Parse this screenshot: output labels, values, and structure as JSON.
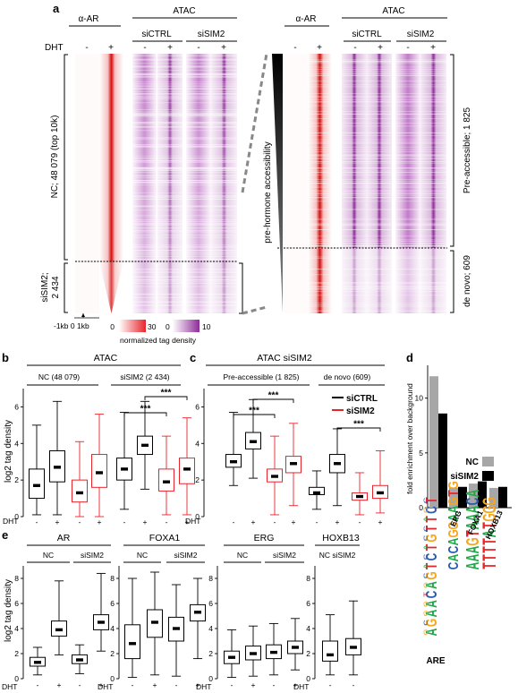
{
  "panel_a": {
    "letter": "a",
    "antibody": "α-AR",
    "atac": "ATAC",
    "dht": "DHT",
    "minus": "-",
    "plus": "+",
    "siCTRL": "siCTRL",
    "siSIM2": "siSIM2",
    "nc_label": "NC; 48 079 (top 10k)",
    "sisim2_label_1": "siSIM2;",
    "sisim2_label_2": "2 434",
    "x_axis": "-1kb 0 1kb",
    "scale_red": [
      "0",
      "30"
    ],
    "scale_purple": [
      "0",
      "10"
    ],
    "scale_title": "normalized tag density",
    "pre_hormone": "pre-hormone accessibility",
    "pre_accessible": "Pre-accessible; 1 825",
    "de_novo": "de novo; 609"
  },
  "panel_b": {
    "letter": "b",
    "title": "ATAC",
    "group1": "NC (48 079)",
    "group2": "siSIM2 (2 434)",
    "ylabel": "log2 tag density",
    "yticks": [
      "0",
      "2",
      "4",
      "6"
    ],
    "dht": "DHT",
    "xticks": [
      "-",
      "+",
      "-",
      "+",
      "-",
      "+",
      "-",
      "+"
    ],
    "sig": [
      "***",
      "***"
    ]
  },
  "panel_c": {
    "letter": "c",
    "title": "ATAC siSIM2",
    "group1": "Pre-accessible (1 825)",
    "group2": "de novo (609)",
    "yticks": [
      "0",
      "2",
      "4",
      "6"
    ],
    "dht": "DHT",
    "xticks": [
      "-",
      "+",
      "-",
      "+",
      "-",
      "+",
      "-",
      "+"
    ],
    "sig": [
      "***",
      "***",
      "***"
    ],
    "legend": [
      {
        "name": "siCTRL",
        "color": "#000000"
      },
      {
        "name": "siSIM2",
        "color": "#e8242b"
      }
    ]
  },
  "panel_d": {
    "letter": "d",
    "ylabel": "fold enrichment over background",
    "yticks": [
      "0",
      "5",
      "10"
    ],
    "legend": [
      {
        "name": "NC",
        "color": "#a7a7a7"
      },
      {
        "name": "siSIM2",
        "color": "#000000"
      }
    ],
    "motifs": [
      "ARE",
      "ERG",
      "FOXA1",
      "HOXB13"
    ]
  },
  "panel_e": {
    "letter": "e",
    "ylabel": "log2 tag density",
    "yticks": [
      "0",
      "2",
      "4",
      "6",
      "8"
    ],
    "dht": "DHT",
    "panels": [
      {
        "title": "AR",
        "g1": "NC",
        "g2": "siSIM2",
        "xticks": [
          "-",
          "+",
          "-",
          "+"
        ]
      },
      {
        "title": "FOXA1",
        "g1": "NC",
        "g2": "siSIM2",
        "xticks": [
          "-",
          "+",
          "-",
          "+"
        ]
      },
      {
        "title": "ERG",
        "g1": "NC",
        "g2": "siSIM2",
        "xticks": [
          "-",
          "+",
          "-",
          "+"
        ]
      },
      {
        "title": "HOXB13",
        "g1": "NC siSIM2",
        "g2": "",
        "xticks": [
          "-",
          "-"
        ]
      }
    ]
  },
  "chart_data": [
    {
      "type": "box",
      "panel": "b",
      "title": "ATAC",
      "ylabel": "log2 tag density",
      "ylim": [
        0,
        7
      ],
      "categories": [
        "NC -",
        "NC +",
        "NC -",
        "NC +",
        "siSIM2 -",
        "siSIM2 +",
        "siSIM2 -",
        "siSIM2 +"
      ],
      "series": [
        {
          "name": "siCTRL",
          "color": "#000000",
          "boxes": [
            {
              "pos": 0,
              "min": 0.1,
              "q1": 1.0,
              "med": 1.7,
              "q3": 2.6,
              "max": 5.0
            },
            {
              "pos": 1,
              "min": 0.1,
              "q1": 1.9,
              "med": 2.7,
              "q3": 3.6,
              "max": 6.3
            },
            {
              "pos": 4,
              "min": 0.4,
              "q1": 2.0,
              "med": 2.6,
              "q3": 3.2,
              "max": 5.7
            },
            {
              "pos": 5,
              "min": 1.5,
              "q1": 3.4,
              "med": 3.9,
              "q3": 4.4,
              "max": 6.3
            }
          ]
        },
        {
          "name": "siSIM2",
          "color": "#e8242b",
          "boxes": [
            {
              "pos": 2,
              "min": 0.0,
              "q1": 0.8,
              "med": 1.3,
              "q3": 2.0,
              "max": 4.1
            },
            {
              "pos": 3,
              "min": 0.0,
              "q1": 1.6,
              "med": 2.4,
              "q3": 3.4,
              "max": 5.6
            },
            {
              "pos": 6,
              "min": 0.1,
              "q1": 1.4,
              "med": 1.9,
              "q3": 2.6,
              "max": 4.4
            },
            {
              "pos": 7,
              "min": 0.1,
              "q1": 1.8,
              "med": 2.6,
              "q3": 3.2,
              "max": 5.4
            }
          ]
        }
      ]
    },
    {
      "type": "box",
      "panel": "c",
      "title": "ATAC siSIM2",
      "ylim": [
        0,
        7
      ],
      "series": [
        {
          "name": "siCTRL",
          "color": "#000000",
          "boxes": [
            {
              "pos": 0,
              "min": 1.7,
              "q1": 2.7,
              "med": 3.0,
              "q3": 3.4,
              "max": 5.7
            },
            {
              "pos": 1,
              "min": 2.1,
              "q1": 3.7,
              "med": 4.1,
              "q3": 4.6,
              "max": 6.4
            },
            {
              "pos": 4,
              "min": 0.4,
              "q1": 1.2,
              "med": 1.3,
              "q3": 1.6,
              "max": 2.5
            },
            {
              "pos": 5,
              "min": 0.6,
              "q1": 2.4,
              "med": 2.9,
              "q3": 3.4,
              "max": 4.8
            }
          ]
        },
        {
          "name": "siSIM2",
          "color": "#e8242b",
          "boxes": [
            {
              "pos": 2,
              "min": 0.1,
              "q1": 1.9,
              "med": 2.2,
              "q3": 2.6,
              "max": 4.4
            },
            {
              "pos": 3,
              "min": 0.6,
              "q1": 2.4,
              "med": 2.9,
              "q3": 3.3,
              "max": 5.1
            },
            {
              "pos": 6,
              "min": 0.1,
              "q1": 0.9,
              "med": 1.1,
              "q3": 1.3,
              "max": 2.4
            },
            {
              "pos": 7,
              "min": 0.2,
              "q1": 1.0,
              "med": 1.3,
              "q3": 1.7,
              "max": 3.6
            }
          ]
        }
      ]
    },
    {
      "type": "bar",
      "panel": "d",
      "ylabel": "fold enrichment over background",
      "ylim": [
        0,
        13
      ],
      "categories": [
        "ARE",
        "ERG",
        "FOXA1",
        "HOXB13"
      ],
      "series": [
        {
          "name": "NC",
          "color": "#a7a7a7",
          "values": [
            12.0,
            1.8,
            2.2,
            1.8
          ]
        },
        {
          "name": "siSIM2",
          "color": "#000000",
          "values": [
            8.6,
            1.9,
            2.4,
            1.9
          ]
        }
      ]
    },
    {
      "type": "box",
      "panel": "e",
      "ylabel": "log2 tag density",
      "ylim": [
        0,
        9
      ],
      "subplots": [
        {
          "title": "AR",
          "boxes": [
            {
              "min": 0.3,
              "q1": 1.0,
              "med": 1.3,
              "q3": 1.7,
              "max": 2.5
            },
            {
              "min": 1.9,
              "q1": 3.4,
              "med": 3.9,
              "q3": 4.6,
              "max": 7.8
            },
            {
              "min": 0.4,
              "q1": 1.2,
              "med": 1.5,
              "q3": 1.9,
              "max": 2.7
            },
            {
              "min": 2.2,
              "q1": 3.9,
              "med": 4.5,
              "q3": 5.1,
              "max": 8.4
            }
          ]
        },
        {
          "title": "FOXA1",
          "boxes": [
            {
              "min": 0.1,
              "q1": 1.6,
              "med": 2.8,
              "q3": 4.3,
              "max": 8.0
            },
            {
              "min": 0.3,
              "q1": 3.3,
              "med": 4.5,
              "q3": 5.5,
              "max": 8.5
            },
            {
              "min": 0.2,
              "q1": 3.0,
              "med": 4.0,
              "q3": 4.9,
              "max": 7.5
            },
            {
              "min": 1.6,
              "q1": 4.6,
              "med": 5.3,
              "q3": 5.9,
              "max": 8.0
            }
          ]
        },
        {
          "title": "ERG",
          "boxes": [
            {
              "min": 0.1,
              "q1": 1.2,
              "med": 1.7,
              "q3": 2.2,
              "max": 3.9
            },
            {
              "min": 0.2,
              "q1": 1.5,
              "med": 2.0,
              "q3": 2.6,
              "max": 4.2
            },
            {
              "min": 0.3,
              "q1": 1.6,
              "med": 2.1,
              "q3": 2.7,
              "max": 4.4
            },
            {
              "min": 0.7,
              "q1": 2.0,
              "med": 2.5,
              "q3": 3.0,
              "max": 4.8
            }
          ]
        },
        {
          "title": "HOXB13",
          "boxes": [
            {
              "min": 0.3,
              "q1": 1.4,
              "med": 1.9,
              "q3": 3.0,
              "max": 5.1
            },
            {
              "min": 0.3,
              "q1": 1.9,
              "med": 2.5,
              "q3": 3.2,
              "max": 6.2
            }
          ]
        }
      ]
    }
  ]
}
